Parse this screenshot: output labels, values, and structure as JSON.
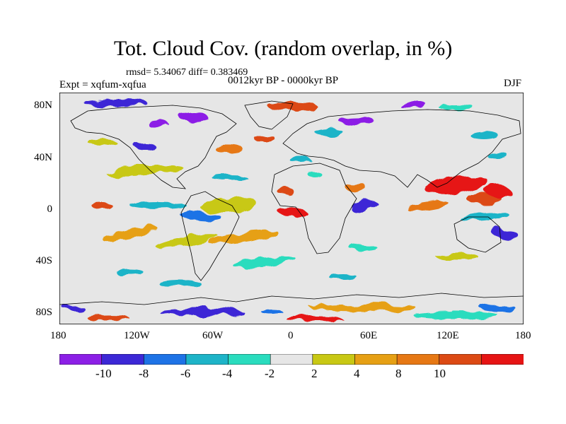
{
  "title": "Tot. Cloud Cov. (random overlap, in %)",
  "stats": "rmsd= 5.34067 diff= 0.383469",
  "experiment": "Expt = xqfum-xqfua",
  "period": "0012kyr BP - 0000kyr BP",
  "season": "DJF",
  "x_ticks": [
    "180",
    "120W",
    "60W",
    "0",
    "60E",
    "120E",
    "180"
  ],
  "y_ticks": [
    "80N",
    "40N",
    "0",
    "40S",
    "80S"
  ],
  "colorbar": {
    "labels": [
      "-10",
      "-8",
      "-6",
      "-4",
      "-2",
      "2",
      "4",
      "8",
      "10"
    ],
    "colors": [
      "#8c1fe6",
      "#3c28d6",
      "#1e73e6",
      "#1eb4c8",
      "#2adcbe",
      "#e6e6e6",
      "#c8c814",
      "#e6a014",
      "#e67814",
      "#dc4a14",
      "#e61414"
    ]
  }
}
